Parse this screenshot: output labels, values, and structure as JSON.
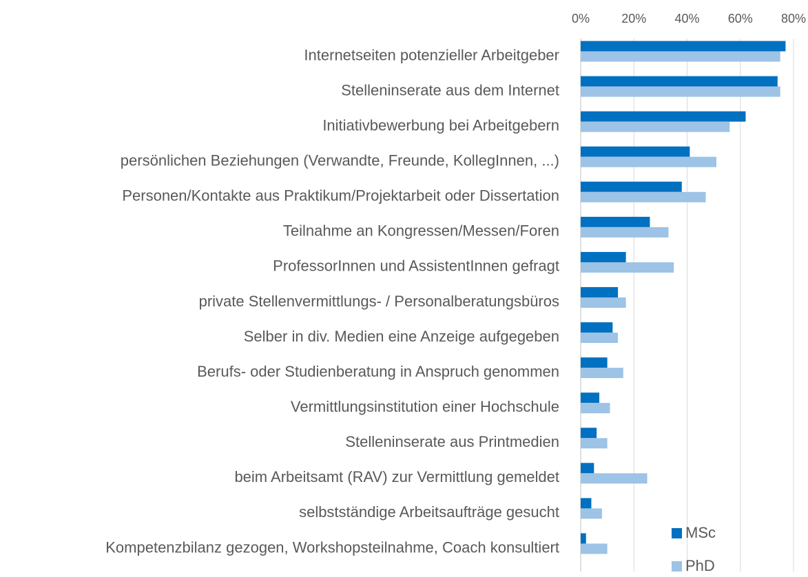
{
  "chart_data": {
    "type": "barh",
    "categories": [
      "Internetseiten potenzieller Arbeitgeber",
      "Stelleninserate aus dem Internet",
      "Initiativbewerbung bei Arbeitgebern",
      "persönlichen Beziehungen (Verwandte, Freunde, KollegInnen, ...)",
      "Personen/Kontakte aus Praktikum/Projektarbeit oder Dissertation",
      "Teilnahme an Kongressen/Messen/Foren",
      "ProfessorInnen und AssistentInnen gefragt",
      "private Stellenvermittlungs- / Personalberatungsbüros",
      "Selber in div. Medien eine Anzeige aufgegeben",
      "Berufs- oder Studienberatung in Anspruch genommen",
      "Vermittlungsinstitution einer Hochschule",
      "Stelleninserate aus Printmedien",
      "beim Arbeitsamt (RAV) zur Vermittlung gemeldet",
      "selbstständige Arbeitsaufträge gesucht",
      "Kompetenzbilanz gezogen, Workshopsteilnahme, Coach konsultiert"
    ],
    "series": [
      {
        "name": "MSc",
        "color": "#0070c0",
        "values": [
          77,
          74,
          62,
          41,
          38,
          26,
          17,
          14,
          12,
          10,
          7,
          6,
          5,
          4,
          2
        ]
      },
      {
        "name": "PhD",
        "color": "#9dc3e6",
        "values": [
          75,
          75,
          56,
          51,
          47,
          33,
          35,
          17,
          14,
          16,
          11,
          10,
          25,
          8,
          10
        ]
      }
    ],
    "xlim": [
      0,
      80
    ],
    "xticks": [
      {
        "value": 0,
        "label": "0%"
      },
      {
        "value": 20,
        "label": "20%"
      },
      {
        "value": 40,
        "label": "40%"
      },
      {
        "value": 60,
        "label": "60%"
      },
      {
        "value": 80,
        "label": "80%"
      }
    ],
    "grid": true,
    "legend": "bottom-right"
  }
}
